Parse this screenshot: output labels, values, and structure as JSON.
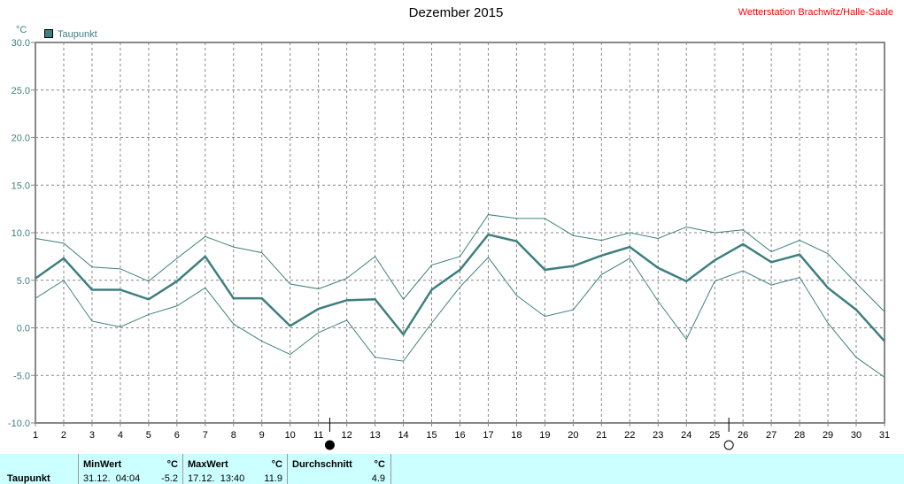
{
  "title": "Dezember 2015",
  "station": "Wetterstation Brachwitz/Halle-Saale",
  "chart_data": {
    "type": "line",
    "title": "Dezember 2015",
    "ylabel": "°C",
    "ylim": [
      -10,
      30
    ],
    "yticks": [
      "30.0",
      "25.0",
      "20.0",
      "15.0",
      "10.0",
      "5.0",
      "0.0",
      "-5.0",
      "-10.0"
    ],
    "x": [
      1,
      2,
      3,
      4,
      5,
      6,
      7,
      8,
      9,
      10,
      11,
      12,
      13,
      14,
      15,
      16,
      17,
      18,
      19,
      20,
      21,
      22,
      23,
      24,
      25,
      26,
      27,
      28,
      29,
      30,
      31
    ],
    "legend": "Taupunkt",
    "grid": true,
    "series": [
      {
        "name": "Taupunkt Max",
        "color": "#3f7f7f",
        "values": [
          9.4,
          8.9,
          6.4,
          6.2,
          4.9,
          7.3,
          9.6,
          8.5,
          7.9,
          4.6,
          4.1,
          5.2,
          7.5,
          3.0,
          6.6,
          7.5,
          11.9,
          11.5,
          11.5,
          9.7,
          9.2,
          10.0,
          9.4,
          10.6,
          10.0,
          10.3,
          8.0,
          9.2,
          7.8,
          4.7,
          1.7
        ]
      },
      {
        "name": "Taupunkt",
        "color": "#3f7f7f",
        "values": [
          5.2,
          7.3,
          4.0,
          4.0,
          3.0,
          4.9,
          7.5,
          3.1,
          3.1,
          0.2,
          2.0,
          2.9,
          3.0,
          -0.7,
          4.0,
          6.1,
          9.8,
          9.1,
          6.1,
          6.5,
          7.6,
          8.5,
          6.3,
          4.9,
          7.1,
          8.8,
          6.9,
          7.7,
          4.2,
          1.9,
          -1.4
        ]
      },
      {
        "name": "Taupunkt Min",
        "color": "#3f7f7f",
        "values": [
          3.1,
          5.0,
          0.7,
          0.1,
          1.4,
          2.3,
          4.2,
          0.4,
          -1.4,
          -2.8,
          -0.5,
          0.8,
          -3.1,
          -3.5,
          0.5,
          4.3,
          7.4,
          3.4,
          1.2,
          1.9,
          5.6,
          7.3,
          2.8,
          -1.2,
          4.9,
          6.0,
          4.5,
          5.3,
          0.5,
          -3.1,
          -5.2
        ]
      }
    ],
    "moon_phases": [
      {
        "day": 11.4,
        "phase": "new-moon"
      },
      {
        "day": 25.5,
        "phase": "full-moon"
      }
    ]
  },
  "table": {
    "row_label": "Taupunkt",
    "min_label": "MinWert",
    "min_unit": "°C",
    "min_time": "31.12.  04:04",
    "min_value": "-5.2",
    "max_label": "MaxWert",
    "max_unit": "°C",
    "max_time": "17.12.  13:40",
    "max_value": "11.9",
    "avg_label": "Durchschnitt",
    "avg_unit": "°C",
    "avg_value": "4.9"
  }
}
